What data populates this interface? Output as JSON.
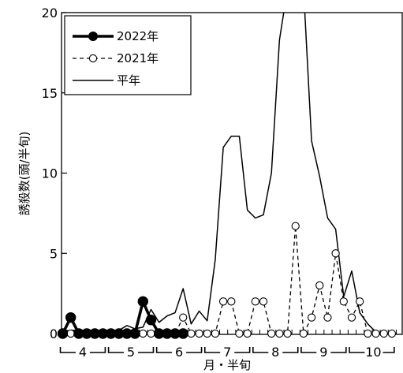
{
  "chart_data": {
    "type": "line",
    "xlabel": "月・半旬",
    "ylabel": "誘殺数(頭/半旬)",
    "ylim": [
      0,
      20
    ],
    "yticks": [
      "0",
      "5",
      "10",
      "15",
      "20"
    ],
    "month_labels": [
      "4",
      "5",
      "6",
      "7",
      "8",
      "9",
      "10"
    ],
    "x": [
      1,
      2,
      3,
      4,
      5,
      6,
      7,
      8,
      9,
      10,
      11,
      12,
      13,
      14,
      15,
      16,
      17,
      18,
      19,
      20,
      21,
      22,
      23,
      24,
      25,
      26,
      27,
      28,
      29,
      30,
      31,
      32,
      33,
      34,
      35,
      36,
      37,
      38,
      39,
      40,
      41,
      42
    ],
    "legend_position": "top-left",
    "grid": false,
    "series": [
      {
        "name": "2022年",
        "style": "solid-thick-filled-circle",
        "color": "#000000",
        "values": [
          0,
          1,
          0,
          0,
          0,
          0,
          0,
          0,
          0,
          0,
          2,
          0.85,
          0,
          0,
          0,
          0,
          null,
          null,
          null,
          null,
          null,
          null,
          null,
          null,
          null,
          null,
          null,
          null,
          null,
          null,
          null,
          null,
          null,
          null,
          null,
          null,
          null,
          null,
          null,
          null,
          null,
          null
        ]
      },
      {
        "name": "2021年",
        "style": "dashed-open-circle",
        "color": "#000000",
        "values": [
          0,
          0,
          0,
          0,
          0,
          0,
          0,
          0,
          0,
          0,
          0,
          0,
          0,
          0,
          0,
          1,
          0,
          0,
          0,
          0,
          2,
          2,
          0,
          0,
          2,
          2,
          0,
          0,
          0,
          6.7,
          0,
          1,
          3,
          1,
          5,
          2,
          1,
          2,
          0,
          0,
          0,
          0
        ]
      },
      {
        "name": "平年",
        "style": "solid-thin",
        "color": "#000000",
        "values": [
          0.1,
          0.2,
          0.2,
          0.2,
          0.1,
          0.2,
          0.2,
          0.2,
          0.5,
          0.3,
          0.4,
          1.5,
          0.7,
          1.1,
          1.3,
          2.8,
          0.6,
          1.4,
          0.8,
          4.6,
          11.6,
          12.3,
          12.3,
          7.7,
          7.2,
          7.4,
          10.0,
          18.3,
          21.5,
          21.5,
          21.5,
          12.0,
          9.8,
          7.2,
          6.5,
          2.3,
          3.9,
          1.3,
          0.6,
          0.1,
          0.0,
          0.0
        ]
      }
    ]
  }
}
